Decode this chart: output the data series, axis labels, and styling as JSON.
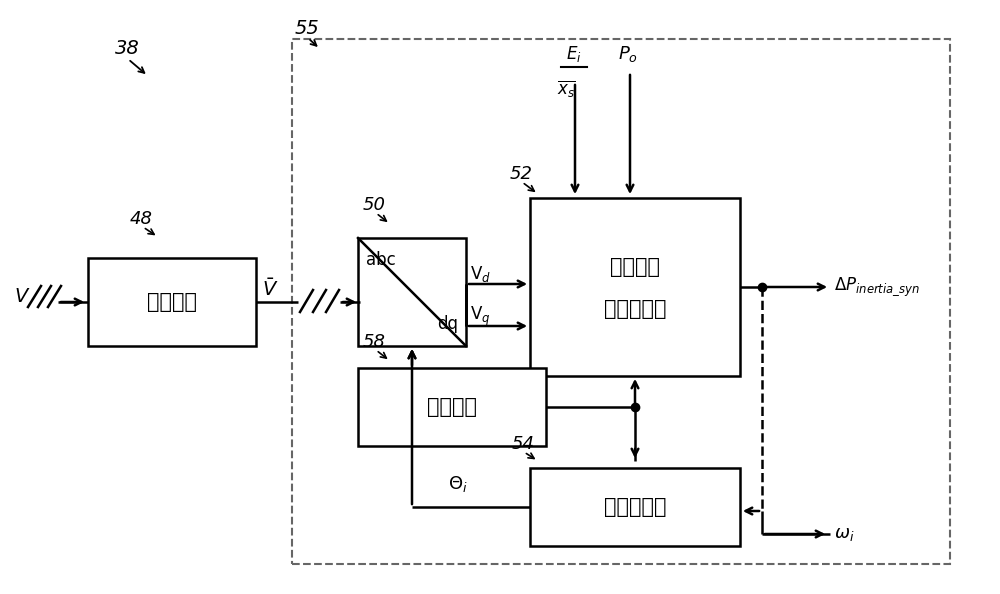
{
  "bg_color": "#ffffff",
  "line_color": "#000000",
  "label_38": "38",
  "label_55": "55",
  "label_48": "48",
  "label_50": "50",
  "label_52": "52",
  "label_58": "58",
  "label_54": "54",
  "box_caiyang": "采样电路",
  "box_abc_top": "abc",
  "box_abc_bot": "dq",
  "box_zonghe1": "综合慢性",
  "box_zonghe2": "响应计算器",
  "box_xitong": "系统参数",
  "box_huanfan": "环反馈电路",
  "text_V": "V",
  "text_Vd": "V$_d$",
  "text_Vq": "V$_q$",
  "text_theta": "Θ$_i$",
  "text_omega": "ω$_i$",
  "text_deltaP": "ΔP$_{inertia\\_syn}$"
}
